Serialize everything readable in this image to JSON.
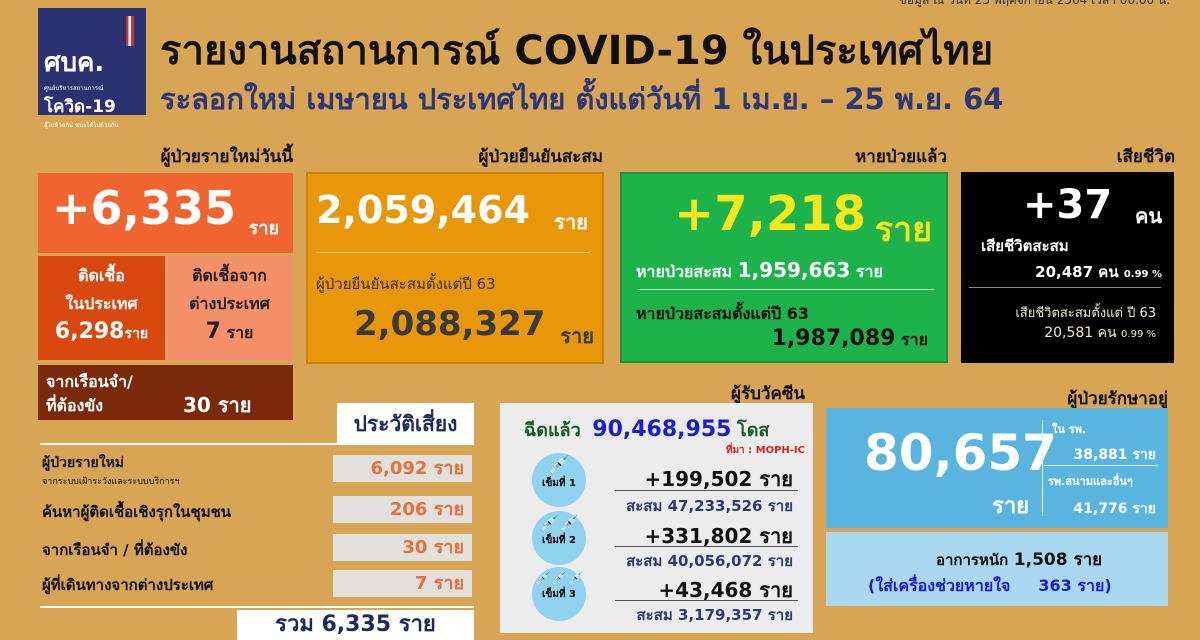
{
  "datestamp": "ข้อมูล ณ วันที่ 25 พฤศจิกายน 2564 เวลา 00.00 น.",
  "logo": {
    "line1": "ศบค.",
    "line2": "ศูนย์บริหารสถานการณ์",
    "line3": "โควิด-19",
    "line4": "สู้ไปด้วยกัน ชนะได้ไปด้วยกัน"
  },
  "title": "รายงานสถานการณ์ COVID-19 ในประเทศไทย",
  "subtitle": "ระลอกใหม่ เมษายน ประเทศไทย ตั้งแต่วันที่ 1 เม.ย. – 25 พ.ย. 64",
  "unit": "ราย",
  "new_cases": {
    "header": "ผู้ป่วยรายใหม่วันนี้",
    "value": "+6,335",
    "domestic_label1": "ติดเชื้อ",
    "domestic_label2": "ในประเทศ",
    "domestic_value": "6,298",
    "imported_label1": "ติดเชื้อจาก",
    "imported_label2": "ต่างประเทศ",
    "imported_value": "7",
    "prison_label1": "จากเรือนจำ/",
    "prison_label2": "ที่ต้องขัง",
    "prison_value": "30"
  },
  "confirmed": {
    "header": "ผู้ป่วยยืนยันสะสม",
    "value": "2,059,464",
    "since_label": "ผู้ป่วยยืนยันสะสมตั้งแต่ปี 63",
    "since_value": "2,088,327"
  },
  "recovered": {
    "header": "หายป่วยแล้ว",
    "value": "+7,218",
    "cum_label": "หายป่วยสะสม",
    "cum_value": "1,959,663",
    "since_label": "หายป่วยสะสมตั้งแต่ปี 63",
    "since_value": "1,987,089"
  },
  "deaths": {
    "header": "เสียชีวิต",
    "value": "+37",
    "unit": "คน",
    "cum_label": "เสียชีวิตสะสม",
    "cum_value": "20,487",
    "cum_pct": "0.99 %",
    "since_label": "เสียชีวิตสะสมตั้งแต่ ปี 63",
    "since_value": "20,581",
    "since_pct": "0.99 %"
  },
  "risk": {
    "header": "ประวัติเสี่ยง",
    "rows": [
      {
        "label": "ผู้ป่วยรายใหม่",
        "sublabel": "จากระบบเฝ้าระวังและระบบบริการฯ",
        "value": "6,092 ราย"
      },
      {
        "label": "ค้นหาผู้ติดเชื้อเชิงรุกในชุมชน",
        "value": "206 ราย"
      },
      {
        "label": "จากเรือนจำ / ที่ต้องขัง",
        "value": "30 ราย"
      },
      {
        "label": "ผู้ที่เดินทางจากต่างประเทศ",
        "value": "7 ราย"
      }
    ],
    "total": "รวม 6,335 ราย"
  },
  "vaccine": {
    "header": "ผู้รับวัคซีน",
    "total_label": "ฉีดแล้ว",
    "total_value": "90,468,955",
    "total_unit": "โดส",
    "source": "ที่มา : MOPH-IC",
    "cum_label": "สะสม",
    "doses": [
      {
        "label": "เข็มที่ 1",
        "new": "+199,502",
        "cum": "47,233,526"
      },
      {
        "label": "เข็มที่ 2",
        "new": "+331,802",
        "cum": "40,056,072"
      },
      {
        "label": "เข็มที่ 3",
        "new": "+43,468",
        "cum": "3,179,357"
      }
    ]
  },
  "treatment": {
    "header": "ผู้ป่วยรักษาอยู่",
    "value": "80,657",
    "hosp_label": "ใน รพ.",
    "hosp_value": "38,881 ราย",
    "field_label": "รพ.สนามและอื่นๆ",
    "field_value": "41,776 ราย",
    "severe_label": "อาการหนัก",
    "severe_value": "1,508 ราย",
    "vent_label": "(ใส่เครื่องช่วยหายใจ",
    "vent_value": "363 ราย)"
  },
  "colors": {
    "background": "#d7a553",
    "new_cases": "#f0652f",
    "confirmed": "#e8960a",
    "recovered": "#1db34a",
    "deaths": "#000000",
    "treatment": "#5ab4e0"
  }
}
